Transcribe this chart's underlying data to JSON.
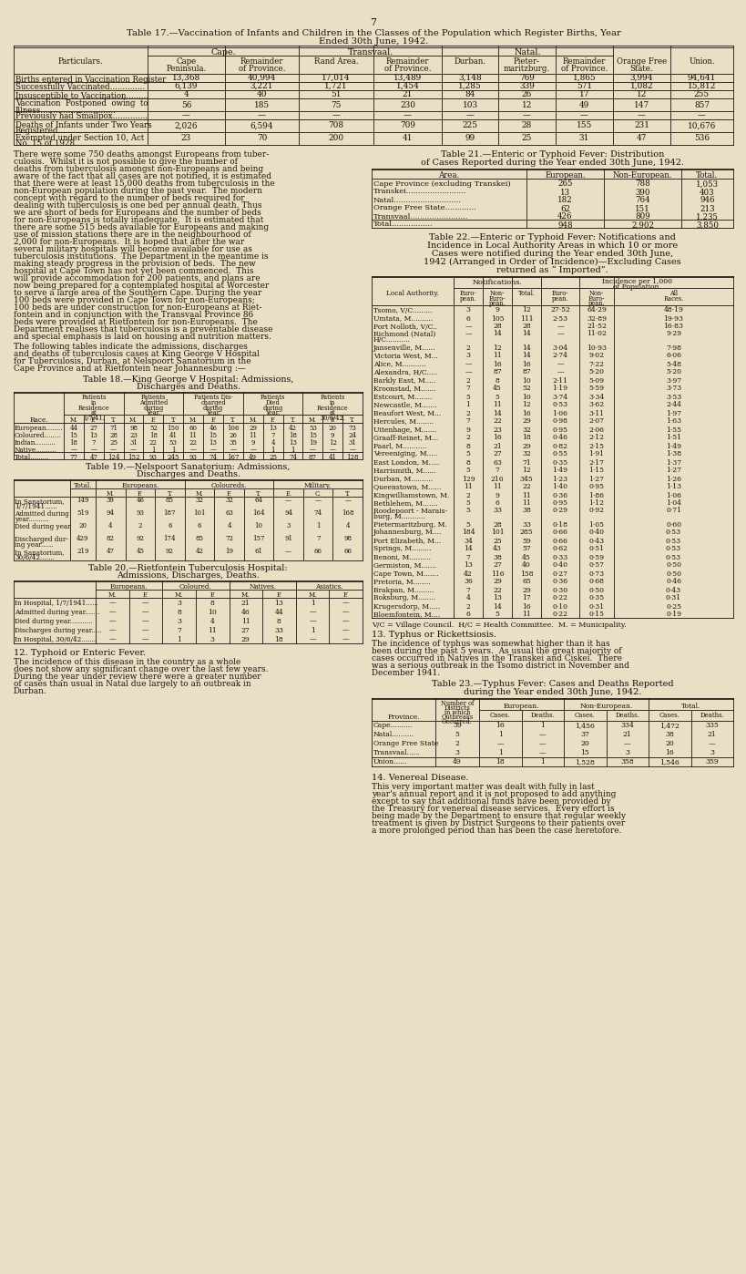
{
  "bg_color": "#e8dfc5",
  "text_color": "#1a1008",
  "page_number": "7",
  "table17_title1": "Table 17.—Vaccination of Infants and Children in the Classes of the Population which Register Births, Year",
  "table17_title2": "Ended 30th June, 1942.",
  "table17_particulars": [
    "Births entered in Vaccination Register",
    "Successfully Vaccinated..............",
    "Insusceptible to Vaccination.........",
    [
      "Vaccination  Postponed  owing  to",
      "Illness.............................."
    ],
    "Previously had Smallpox..............",
    [
      "Deaths of Infants under Two Years",
      "Registered..........................."
    ],
    [
      "Exempted under Section 10, Act",
      "No. 15 of 1928......................"
    ]
  ],
  "table17_data": [
    [
      "13,368",
      "40,994",
      "17,014",
      "13,489",
      "3,148",
      "769",
      "1,865",
      "3,994",
      "94,641"
    ],
    [
      "6,139",
      "3,221",
      "1,721",
      "1,454",
      "1,285",
      "339",
      "571",
      "1,082",
      "15,812"
    ],
    [
      "4",
      "40",
      "51",
      "21",
      "84",
      "26",
      "17",
      "12",
      "255"
    ],
    [
      "56",
      "185",
      "75",
      "230",
      "103",
      "12",
      "49",
      "147",
      "857"
    ],
    [
      "—",
      "—",
      "—",
      "—",
      "—",
      "—",
      "—",
      "—",
      "—"
    ],
    [
      "2,026",
      "6,594",
      "708",
      "709",
      "225",
      "28",
      "155",
      "231",
      "10,676"
    ],
    [
      "23",
      "70",
      "200",
      "41",
      "99",
      "25",
      "31",
      "47",
      "536"
    ]
  ],
  "para_tuberculosis": [
    "There were some 750 deaths amongst Europeans from tuber-",
    "culosis.  Whilst it is not possible to give the number of",
    "deaths from tuberculosis amongst non-Europeans and being",
    "aware of the fact that all cases are not notified, it is estimated",
    "that there were at least 15,000 deaths from tuberculosis in the",
    "non-European population during the past year.  The modern",
    "concept with regard to the number of beds required for",
    "dealing with tuberculosis is one bed per annual death. Thus",
    "we are short of beds for Europeans and the number of beds",
    "for non-Europeans is totally inadequate.  It is estimated that",
    "there are some 515 beds available for Europeans and making",
    "use of mission stations there are in the neighbourhood of",
    "2,000 for non-Europeans.  It is hoped that after the war",
    "several military hospitals will become available for use as",
    "tuberculosis institutions.  The Department in the meantime is",
    "making steady progress in the provision of beds.  The new",
    "hospital at Cape Town has not yet been commenced.  This",
    "will provide accommodation for 200 patients, and plans are",
    "now being prepared for a contemplated hospital at Worcester",
    "to serve a large area of the Southern Cape. During the year",
    "100 beds were provided in Cape Town for non-Europeans;",
    "100 beds are under construction for non-Europeans at Riet-",
    "fontein and in conjunction with the Transvaal Province 86",
    "beds were provided at Rietfontein for non-Europeans.  The",
    "Department realises that tuberculosis is a preventable disease",
    "and special emphasis is laid on housing and nutrition matters."
  ],
  "para_following": [
    "The following tables indicate the admissions, discharges",
    "and deaths of tuberculosis cases at King George V Hospital",
    "for Tuberculosis, Durban, at Nelspoort Sanatorium in the",
    "Cape Province and at Rietfontein near Johannesburg :—"
  ],
  "table18_title1": "Table 18.—King George V Hospital: Admissions,",
  "table18_title2": "Discharges and Deaths.",
  "table18_groups": [
    "Patients\nin\nResidence\nat\n1/7/41.",
    "Patients\nAdmitted\nduring\nYear.",
    "Patients Dis-\ncharged\nduring\nYear.",
    "Patients\nDied\nduring\nYear.",
    "Patients\nin\nResidence\nat\n30/6/42."
  ],
  "table18_data": [
    [
      "European........",
      "44",
      "27",
      "71",
      "98",
      "52",
      "150",
      "60",
      "46",
      "106",
      "29",
      "13",
      "42",
      "53",
      "20",
      "73"
    ],
    [
      "Coloured........",
      "15",
      "13",
      "28",
      "23",
      "18",
      "41",
      "11",
      "15",
      "26",
      "11",
      "7",
      "18",
      "15",
      "9",
      "24"
    ],
    [
      "Indian..........",
      "18",
      "7",
      "25",
      "31",
      "22",
      "53",
      "22",
      "13",
      "35",
      "9",
      "4",
      "13",
      "19",
      "12",
      "31"
    ],
    [
      "Native..........",
      "—",
      "—",
      "—",
      "—",
      "1",
      "1",
      "—",
      "—",
      "—",
      "—",
      "1",
      "1",
      "—",
      "—",
      "—"
    ],
    [
      "Total.........",
      "77",
      "47",
      "124",
      "152",
      "93",
      "245",
      "93",
      "74",
      "167",
      "49",
      "25",
      "74",
      "87",
      "41",
      "128"
    ]
  ],
  "table19_title1": "Table 19.—Nelspoort Sanatorium: Admissions,",
  "table19_title2": "Discharges and Deaths.",
  "table19_groups": [
    "Europeans.",
    "Coloureds.",
    "Military."
  ],
  "table19_sub": [
    "M.",
    "F.",
    "T.",
    "M.",
    "F.",
    "T.",
    "E.",
    "C.",
    "T."
  ],
  "table19_data": [
    [
      "In Sanatorium,",
      "1/7/1941......",
      "149",
      "39",
      "46",
      "85",
      "32",
      "32",
      "64",
      "—",
      "—",
      "—"
    ],
    [
      "Admitted during",
      "year..........",
      "519",
      "94",
      "93",
      "187",
      "101",
      "63",
      "164",
      "94",
      "74",
      "168"
    ],
    [
      "Died during year",
      "",
      "20",
      "4",
      "2",
      "6",
      "6",
      "4",
      "10",
      "3",
      "1",
      "4"
    ],
    [
      "Discharged dur-",
      "ing year......",
      "429",
      "82",
      "92",
      "174",
      "85",
      "72",
      "157",
      "91",
      "7",
      "98"
    ],
    [
      "In Sanatorium,",
      "30/6/42.......",
      "219",
      "47",
      "45",
      "92",
      "42",
      "19",
      "61",
      "—",
      "66",
      "66"
    ]
  ],
  "table19_total_label": "Total.",
  "table20_title1": "Table 20.—Rietfontein Tuberculosis Hospital:",
  "table20_title2": "Admissions, Discharges, Deaths.",
  "table20_groups": [
    "Europeans.",
    "Coloured.",
    "Natives.",
    "Asiatics."
  ],
  "table20_data": [
    [
      "In Hospital, 1/7/1941......",
      "—",
      "—",
      "3",
      "8",
      "21",
      "13",
      "1",
      "—"
    ],
    [
      "Admitted during year.......",
      "—",
      "—",
      "8",
      "10",
      "46",
      "44",
      "—",
      "—"
    ],
    [
      "Died during year...........",
      "—",
      "—",
      "3",
      "4",
      "11",
      "8",
      "—",
      "—"
    ],
    [
      "Discharges during year.....",
      "—",
      "—",
      "7",
      "11",
      "27",
      "33",
      "1",
      "—"
    ],
    [
      "In Hospital, 30/6/42.......",
      "—",
      "—",
      "1",
      "3",
      "29",
      "18",
      "—",
      "—"
    ]
  ],
  "section12_title": "12. Typhoid or Enteric Fever.",
  "section12_text": [
    "The incidence of this disease in the country as a whole",
    "does not show any significant change over the last few years.",
    "During the year under review there were a greater number",
    "of cases than usual in Natal due largely to an outbreak in",
    "Durban."
  ],
  "table21_title1": "Table 21.—Enteric or Typhoid Fever: Distribution",
  "table21_title2": "of Cases Reported during the Year ended 30th June, 1942.",
  "table21_data": [
    [
      "Cape Province (excluding Transkei)",
      "265",
      "788",
      "1,053"
    ],
    [
      "Transkei.........................",
      "13",
      "390",
      "403"
    ],
    [
      "Natal............................",
      "182",
      "764",
      "946"
    ],
    [
      "Orange Free State.............",
      "62",
      "151",
      "213"
    ],
    [
      "Transvaal........................",
      "426",
      "809",
      "1,235"
    ],
    [
      "Total.................",
      "948",
      "2,902",
      "3,850"
    ]
  ],
  "table22_title1": "Table 22.—Enteric or Typhoid Fever: Notifications and",
  "table22_title2": "Incidence in Local Authority Areas in which 10 or more",
  "table22_title3": "Cases were notified during the Year ended 30th June,",
  "table22_title4": "1942 (Arranged in Order of Incidence)—Excluding Cases",
  "table22_title5": "returned as “ Imported”.",
  "table22_data": [
    [
      "Tsomo, V/C.........",
      "3",
      "9",
      "12",
      "27·52",
      "64·29",
      "48·19"
    ],
    [
      "Umtata, M..........",
      "6",
      "105",
      "111",
      "2·53",
      "32·89",
      "19·93"
    ],
    [
      "Port Nolloth, V/C..",
      "—",
      "28",
      "28",
      "—",
      "21·52",
      "16·83"
    ],
    [
      "Richmond (Natal)",
      "H/C...........",
      "—",
      "14",
      "14",
      "—",
      "11·02",
      "9·29"
    ],
    [
      "Jansenville, M......",
      "2",
      "12",
      "14",
      "3·04",
      "10·93",
      "7·98"
    ],
    [
      "Victoria West, M...",
      "3",
      "11",
      "14",
      "2·74",
      "9·02",
      "6·06"
    ],
    [
      "Alice, M...........",
      "—",
      "16",
      "16",
      "—",
      "7·22",
      "5·48"
    ],
    [
      "Alexandra, H/C.....",
      "—",
      "87",
      "87",
      "—",
      "5·20",
      "5·20"
    ],
    [
      "Barkly East, M.....",
      "2",
      "8",
      "10",
      "2·11",
      "5·09",
      "3·97"
    ],
    [
      "Kroonstad, M.......",
      "7",
      "45",
      "52",
      "1·19",
      "5·59",
      "3·73"
    ],
    [
      "Estcourt, M........",
      "5",
      "5",
      "10",
      "3·74",
      "3·34",
      "3·53"
    ],
    [
      "Newcastle, M.......",
      "1",
      "11",
      "12",
      "0·53",
      "3·62",
      "2·44"
    ],
    [
      "Beaufort West, M...",
      "2",
      "14",
      "16",
      "1·06",
      "3·11",
      "1·97"
    ],
    [
      "Hercules, M........",
      "7",
      "22",
      "29",
      "0·98",
      "2·07",
      "1·63"
    ],
    [
      "Uitenhage, M.......",
      "9",
      "23",
      "32",
      "0·95",
      "2·06",
      "1·55"
    ],
    [
      "Graaff-Reinet, M...",
      "2",
      "16",
      "18",
      "0·46",
      "2·12",
      "1·51"
    ],
    [
      "Paarl, M...........",
      "8",
      "21",
      "29",
      "0·82",
      "2·15",
      "1·49"
    ],
    [
      "Vereeniging, M.....",
      "5",
      "27",
      "32",
      "0·55",
      "1·91",
      "1·38"
    ],
    [
      "East London, M.....",
      "8",
      "63",
      "71",
      "0·35",
      "2·17",
      "1·37"
    ],
    [
      "Harrismith, M......",
      "5",
      "7",
      "12",
      "1·49",
      "1·15",
      "1·27"
    ],
    [
      "Durban, M..........",
      "129",
      "216",
      "345",
      "1·23",
      "1·27",
      "1·26"
    ],
    [
      "Queenstown, M......",
      "11",
      "11",
      "22",
      "1·40",
      "0·95",
      "1·13"
    ],
    [
      "Kingwilliamstown, M.",
      "2",
      "9",
      "11",
      "0·36",
      "1·86",
      "1·06"
    ],
    [
      "Bethlehem, M.......",
      "5",
      "6",
      "11",
      "0·95",
      "1·12",
      "1·04"
    ],
    [
      "Roodepoort - Marais-",
      "burg, M...........",
      "5",
      "33",
      "38",
      "0·29",
      "0·92",
      "0·71"
    ],
    [
      "Pietermaritzburg, M.",
      "5",
      "28",
      "33",
      "0·18",
      "1·05",
      "0·60"
    ],
    [
      "Johannesburg, M....",
      "184",
      "101",
      "285",
      "0·66",
      "0·40",
      "0·53"
    ],
    [
      "Port Elizabeth, M...",
      "34",
      "25",
      "59",
      "0·66",
      "0·43",
      "0·53"
    ],
    [
      "Springs, M.........",
      "14",
      "43",
      "57",
      "0·62",
      "0·51",
      "0·53"
    ],
    [
      "Benoni, M..........",
      "7",
      "38",
      "45",
      "0·33",
      "0·59",
      "0·53"
    ],
    [
      "Germiston, M.......",
      "13",
      "27",
      "40",
      "0·40",
      "0·57",
      "0·50"
    ],
    [
      "Cape Town, M.......",
      "42",
      "116",
      "158",
      "0·27",
      "0·73",
      "0·50"
    ],
    [
      "Pretoria, M........",
      "36",
      "29",
      "65",
      "0·36",
      "0·68",
      "0·46"
    ],
    [
      "Brakpan, M.........",
      "7",
      "22",
      "29",
      "0·30",
      "0·50",
      "0·43"
    ],
    [
      "Boksburg, M........",
      "4",
      "13",
      "17",
      "0·22",
      "0·35",
      "0·31"
    ],
    [
      "Krugersdorp, M.....",
      "2",
      "14",
      "16",
      "0·10",
      "0·31",
      "0·25"
    ],
    [
      "Bloemfontein, M....",
      "6",
      "5",
      "11",
      "0·22",
      "0·15",
      "0·19"
    ]
  ],
  "table22_footnote": "V/C = Village Council.  H/C = Health Committee.  M. = Municipality.",
  "section13_title": "13. Typhus or Rickettsiosis.",
  "section13_text": [
    "The incidence of typhus was somewhat higher than it has",
    "been during the past 5 years.  As usual the great majority of",
    "cases occurred in Natives in the Transkei and Ciskei.  There",
    "was a serious outbreak in the Tsomo district in November and",
    "December 1941."
  ],
  "table23_title1": "Table 23.—Typhus Fever: Cases and Deaths Reported",
  "table23_title2": "during the Year ended 30th June, 1942.",
  "table23_data": [
    [
      "Cape..........",
      "39",
      "16",
      "1",
      "1,456",
      "334",
      "1,472",
      "335"
    ],
    [
      "Natal..........",
      "5",
      "1",
      "—",
      "37",
      "21",
      "38",
      "21"
    ],
    [
      "Orange Free State",
      "2",
      "—",
      "—",
      "20",
      "—",
      "20",
      "—"
    ],
    [
      "Transvaal......",
      "3",
      "1",
      "—",
      "15",
      "3",
      "16",
      "3"
    ],
    [
      "Union......",
      "49",
      "18",
      "1",
      "1,528",
      "358",
      "1,546",
      "359"
    ]
  ],
  "section14_title": "14. Venereal Disease.",
  "section14_text": [
    "This very important matter was dealt with fully in last",
    "year's annual report and it is not proposed to add anything",
    "except to say that additional funds have been provided by",
    "the Treasury for venereal disease services.  Every effort is",
    "being made by the Department to ensure that regular weekly",
    "treatment is given by District Surgeons to their patients over",
    "a more prolonged period than has been the case heretofore."
  ]
}
